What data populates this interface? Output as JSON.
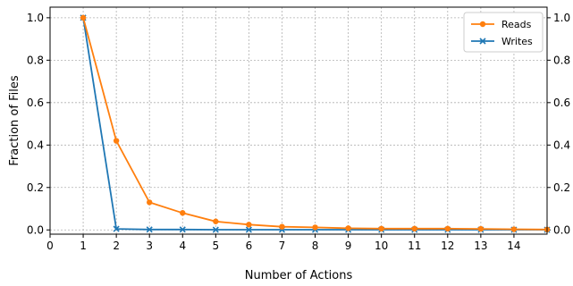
{
  "chart_data": {
    "type": "line",
    "title": "",
    "xlabel": "Number of Actions",
    "ylabel": "Fraction of Files",
    "xlim": [
      0,
      15
    ],
    "ylim": [
      -0.02,
      1.05
    ],
    "x_ticks": [
      0,
      1,
      2,
      3,
      4,
      5,
      6,
      7,
      8,
      9,
      10,
      11,
      12,
      13,
      14
    ],
    "y_ticks": [
      0.0,
      0.2,
      0.4,
      0.6,
      0.8,
      1.0
    ],
    "y_tick_labels": [
      "0.0",
      "0.2",
      "0.4",
      "0.6",
      "0.8",
      "1.0"
    ],
    "right_axis_ticks": true,
    "grid": true,
    "legend_position": "top-right",
    "x": [
      1,
      2,
      3,
      4,
      5,
      6,
      7,
      8,
      9,
      10,
      11,
      12,
      13,
      14,
      15
    ],
    "series": [
      {
        "name": "Reads",
        "color": "#ff7f0e",
        "marker": "circle",
        "values": [
          1.0,
          0.42,
          0.13,
          0.08,
          0.04,
          0.025,
          0.015,
          0.012,
          0.008,
          0.006,
          0.006,
          0.006,
          0.005,
          0.003,
          0.002
        ]
      },
      {
        "name": "Writes",
        "color": "#1f77b4",
        "marker": "x",
        "values": [
          1.0,
          0.005,
          0.002,
          0.002,
          0.001,
          0.001,
          0.001,
          0.001,
          0.001,
          0.001,
          0.001,
          0.001,
          0.001,
          0.001,
          0.001
        ]
      }
    ]
  }
}
